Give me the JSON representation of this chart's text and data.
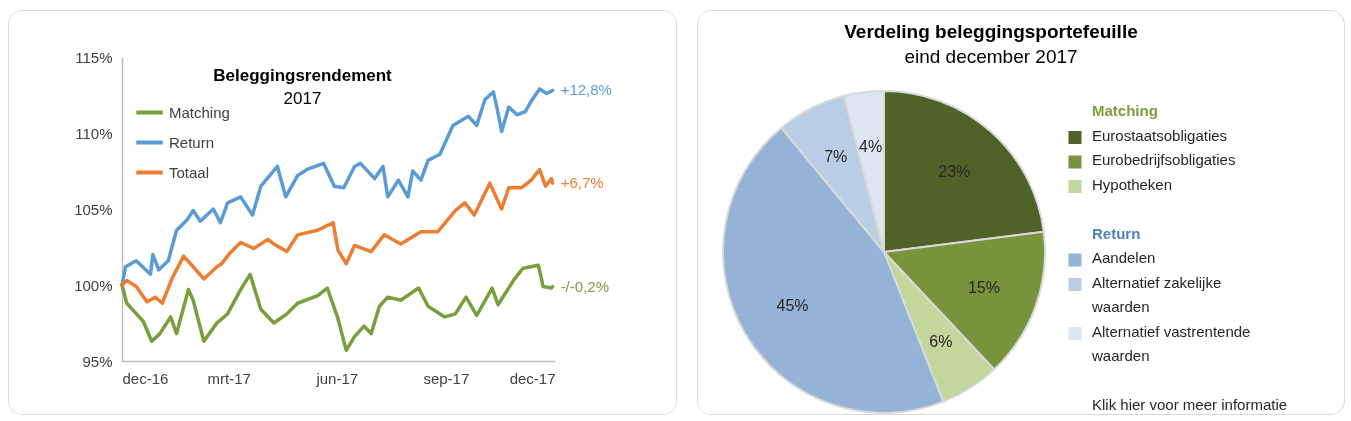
{
  "chart_data": [
    {
      "type": "line",
      "title": "Beleggingsrendement",
      "subtitle": "2017",
      "legend": "top left",
      "xlim": [
        "2016-12-31",
        "2017-12-31"
      ],
      "xticks": [
        {
          "value": "2016-12-31",
          "label": "dec-16"
        },
        {
          "value": "2017-03-31",
          "label": "mrt-17"
        },
        {
          "value": "2017-06-30",
          "label": "jun-17"
        },
        {
          "value": "2017-09-30",
          "label": "sep-17"
        },
        {
          "value": "2017-12-31",
          "label": "dec-17"
        }
      ],
      "ylim": [
        95,
        115
      ],
      "yticks": [
        {
          "value": 95,
          "label": "95%"
        },
        {
          "value": 100,
          "label": "100%"
        },
        {
          "value": 105,
          "label": "105%"
        },
        {
          "value": 110,
          "label": "110%"
        },
        {
          "value": 115,
          "label": "115%"
        }
      ],
      "series": [
        {
          "name": "Matching",
          "color": "#77a03c",
          "x": [
            "2016-12-31",
            "2017-01-04",
            "2017-01-11",
            "2017-01-18",
            "2017-01-25",
            "2017-02-01",
            "2017-02-10",
            "2017-02-15",
            "2017-02-25",
            "2017-03-01",
            "2017-03-10",
            "2017-03-21",
            "2017-03-30",
            "2017-04-10",
            "2017-04-18",
            "2017-04-27",
            "2017-05-08",
            "2017-05-19",
            "2017-05-28",
            "2017-06-14",
            "2017-06-22",
            "2017-07-01",
            "2017-07-08",
            "2017-07-15",
            "2017-07-23",
            "2017-07-29",
            "2017-08-05",
            "2017-08-12",
            "2017-08-23",
            "2017-09-07",
            "2017-09-15",
            "2017-09-29",
            "2017-10-08",
            "2017-10-17",
            "2017-10-26",
            "2017-11-08",
            "2017-11-13",
            "2017-11-26",
            "2017-12-04",
            "2017-12-17",
            "2017-12-21",
            "2017-12-28",
            "2017-12-29"
          ],
          "values": [
            100.0,
            98.8,
            98.2,
            97.6,
            96.3,
            96.8,
            97.9,
            96.8,
            99.7,
            99.0,
            96.3,
            97.5,
            98.1,
            99.7,
            100.7,
            98.4,
            97.5,
            98.1,
            98.8,
            99.3,
            99.8,
            97.8,
            95.7,
            96.6,
            97.3,
            96.8,
            98.6,
            99.2,
            99.0,
            99.8,
            98.6,
            97.9,
            98.1,
            99.2,
            98.0,
            99.8,
            98.7,
            100.3,
            101.1,
            101.3,
            99.9,
            99.8,
            99.9
          ]
        },
        {
          "name": "Return",
          "color": "#5b9bd5",
          "x": [
            "2016-12-31",
            "2017-01-03",
            "2017-01-12",
            "2017-01-24",
            "2017-01-26",
            "2017-01-31",
            "2017-02-08",
            "2017-02-15",
            "2017-02-24",
            "2017-03-01",
            "2017-03-07",
            "2017-03-18",
            "2017-03-24",
            "2017-03-30",
            "2017-04-10",
            "2017-04-20",
            "2017-04-27",
            "2017-05-11",
            "2017-05-18",
            "2017-05-28",
            "2017-06-05",
            "2017-06-19",
            "2017-06-28",
            "2017-07-06",
            "2017-07-15",
            "2017-07-20",
            "2017-08-01",
            "2017-08-08",
            "2017-08-12",
            "2017-08-21",
            "2017-08-29",
            "2017-09-02",
            "2017-09-09",
            "2017-09-15",
            "2017-09-25",
            "2017-10-06",
            "2017-10-19",
            "2017-10-26",
            "2017-11-02",
            "2017-11-09",
            "2017-11-12",
            "2017-11-16",
            "2017-11-22",
            "2017-11-29",
            "2017-12-06",
            "2017-12-11",
            "2017-12-18",
            "2017-12-24",
            "2017-12-29"
          ],
          "values": [
            100.0,
            101.2,
            101.6,
            100.7,
            102.0,
            101.0,
            101.6,
            103.6,
            104.3,
            104.9,
            104.2,
            105.0,
            104.1,
            105.4,
            105.8,
            104.6,
            106.5,
            107.8,
            105.8,
            107.2,
            107.6,
            108.0,
            106.5,
            106.4,
            107.8,
            108.0,
            107.0,
            107.8,
            105.8,
            106.9,
            105.8,
            107.5,
            106.9,
            108.2,
            108.6,
            110.5,
            111.1,
            110.5,
            112.2,
            112.7,
            111.7,
            110.1,
            111.7,
            111.2,
            111.4,
            112.1,
            112.9,
            112.6,
            112.8
          ]
        },
        {
          "name": "Totaal",
          "color": "#ed7d31",
          "x": [
            "2016-12-31",
            "2017-01-04",
            "2017-01-12",
            "2017-01-21",
            "2017-01-28",
            "2017-02-03",
            "2017-02-11",
            "2017-02-21",
            "2017-03-01",
            "2017-03-10",
            "2017-03-21",
            "2017-03-25",
            "2017-04-01",
            "2017-04-10",
            "2017-04-21",
            "2017-05-03",
            "2017-05-08",
            "2017-05-19",
            "2017-05-28",
            "2017-06-14",
            "2017-06-27",
            "2017-07-01",
            "2017-07-08",
            "2017-07-15",
            "2017-07-29",
            "2017-08-09",
            "2017-08-23",
            "2017-09-09",
            "2017-09-23",
            "2017-10-08",
            "2017-10-16",
            "2017-10-24",
            "2017-11-06",
            "2017-11-16",
            "2017-11-22",
            "2017-12-03",
            "2017-12-11",
            "2017-12-18",
            "2017-12-23",
            "2017-12-28",
            "2017-12-29"
          ],
          "values": [
            100.0,
            100.3,
            99.9,
            98.9,
            99.2,
            98.8,
            100.4,
            101.9,
            101.2,
            100.4,
            101.2,
            101.4,
            102.1,
            102.8,
            102.4,
            103.0,
            102.7,
            102.2,
            103.3,
            103.6,
            104.1,
            102.3,
            101.4,
            102.6,
            102.2,
            103.3,
            102.7,
            103.5,
            103.5,
            104.9,
            105.4,
            104.6,
            106.7,
            105.0,
            106.4,
            106.4,
            106.9,
            107.6,
            106.5,
            107.0,
            106.7
          ]
        }
      ],
      "annotations": [
        {
          "text": "-/-0,2%",
          "x": "2017-12-29",
          "y": 99.9
        },
        {
          "text": "+12,8%",
          "x": "2017-12-29",
          "y": 112.8
        },
        {
          "text": "+6,7%",
          "x": "2017-12-29",
          "y": 106.7
        }
      ]
    },
    {
      "type": "pie",
      "title": "Verdeling beleggingsportefeuille",
      "subtitle": "eind december 2017",
      "legend": "right",
      "categories": [
        "Eurostaatsobligaties",
        "Eurobedrijfsobligaties",
        "Hypotheken",
        "Aandelen",
        "Alternatief zakelijke waarden",
        "Alternatief vastrentende waarden"
      ],
      "values": [
        23,
        15,
        6,
        45,
        7,
        4
      ],
      "colors": [
        "#4f6228",
        "#77933c",
        "#c3d69b",
        "#95b3d7",
        "#b9cde5",
        "#dce6f2"
      ],
      "value_labels": [
        "23%",
        "15%",
        "6%",
        "45%",
        "7%",
        "4%"
      ],
      "annotations": [
        "Matching",
        "Return",
        "Klik hier voor meer informatie"
      ]
    }
  ]
}
